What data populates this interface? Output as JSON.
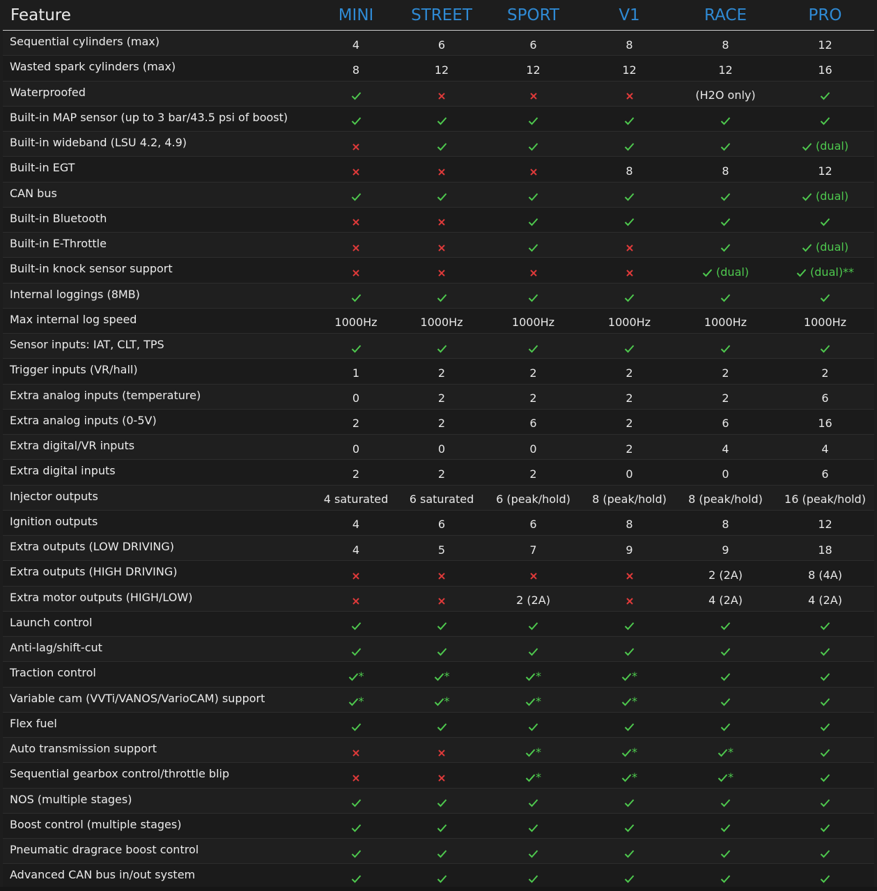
{
  "header": {
    "feature": "Feature",
    "columns": [
      "MINI",
      "STREET",
      "SPORT",
      "V1",
      "RACE",
      "PRO"
    ]
  },
  "colors": {
    "accent": "#2f8ad4",
    "yes": "#4ec94e",
    "no": "#e03a3a",
    "background": "#1d1d1d"
  },
  "icons": {
    "yes": "check-icon",
    "no": "cross-icon"
  },
  "rows": [
    {
      "feature": "Sequential cylinders (max)",
      "values": [
        "4",
        "6",
        "6",
        "8",
        "8",
        "12"
      ]
    },
    {
      "feature": "Wasted spark cylinders (max)",
      "values": [
        "8",
        "12",
        "12",
        "12",
        "12",
        "16"
      ]
    },
    {
      "feature": "Waterproofed",
      "values": [
        "yes",
        "no",
        "no",
        "no",
        "(H2O only)",
        "yes"
      ]
    },
    {
      "feature": "Built-in MAP sensor (up to 3 bar/43.5 psi of boost)",
      "values": [
        "yes",
        "yes",
        "yes",
        "yes",
        "yes",
        "yes"
      ]
    },
    {
      "feature": "Built-in wideband (LSU 4.2, 4.9)",
      "values": [
        "no",
        "yes",
        "yes",
        "yes",
        "yes",
        "yes|(dual)"
      ]
    },
    {
      "feature": "Built-in EGT",
      "values": [
        "no",
        "no",
        "no",
        "8",
        "8",
        "12"
      ]
    },
    {
      "feature": "CAN bus",
      "values": [
        "yes",
        "yes",
        "yes",
        "yes",
        "yes",
        "yes|(dual)"
      ]
    },
    {
      "feature": "Built-in Bluetooth",
      "values": [
        "no",
        "no",
        "yes",
        "yes",
        "yes",
        "yes"
      ]
    },
    {
      "feature": "Built-in E-Throttle",
      "values": [
        "no",
        "no",
        "yes",
        "no",
        "yes",
        "yes|(dual)"
      ]
    },
    {
      "feature": "Built-in knock sensor support",
      "values": [
        "no",
        "no",
        "no",
        "no",
        "yes|(dual)",
        "yes|(dual)**"
      ]
    },
    {
      "feature": "Internal loggings (8MB)",
      "values": [
        "yes",
        "yes",
        "yes",
        "yes",
        "yes",
        "yes"
      ]
    },
    {
      "feature": "Max internal log speed",
      "values": [
        "1000Hz",
        "1000Hz",
        "1000Hz",
        "1000Hz",
        "1000Hz",
        "1000Hz"
      ]
    },
    {
      "feature": "Sensor inputs: IAT, CLT, TPS",
      "values": [
        "yes",
        "yes",
        "yes",
        "yes",
        "yes",
        "yes"
      ]
    },
    {
      "feature": "Trigger inputs (VR/hall)",
      "values": [
        "1",
        "2",
        "2",
        "2",
        "2",
        "2"
      ]
    },
    {
      "feature": "Extra analog inputs (temperature)",
      "values": [
        "0",
        "2",
        "2",
        "2",
        "2",
        "6"
      ]
    },
    {
      "feature": "Extra analog inputs (0-5V)",
      "values": [
        "2",
        "2",
        "6",
        "2",
        "6",
        "16"
      ]
    },
    {
      "feature": "Extra digital/VR inputs",
      "values": [
        "0",
        "0",
        "0",
        "2",
        "4",
        "4"
      ]
    },
    {
      "feature": "Extra digital inputs",
      "values": [
        "2",
        "2",
        "2",
        "0",
        "0",
        "6"
      ]
    },
    {
      "feature": "Injector outputs",
      "values": [
        "4 saturated",
        "6 saturated",
        "6 (peak/hold)",
        "8 (peak/hold)",
        "8 (peak/hold)",
        "16 (peak/hold)"
      ]
    },
    {
      "feature": "Ignition outputs",
      "values": [
        "4",
        "6",
        "6",
        "8",
        "8",
        "12"
      ]
    },
    {
      "feature": "Extra outputs (LOW DRIVING)",
      "values": [
        "4",
        "5",
        "7",
        "9",
        "9",
        "18"
      ]
    },
    {
      "feature": "Extra outputs (HIGH DRIVING)",
      "values": [
        "no",
        "no",
        "no",
        "no",
        "2 (2A)",
        "8 (4A)"
      ]
    },
    {
      "feature": "Extra motor outputs (HIGH/LOW)",
      "values": [
        "no",
        "no",
        "2 (2A)",
        "no",
        "4 (2A)",
        "4 (2A)"
      ]
    },
    {
      "feature": "Launch control",
      "values": [
        "yes",
        "yes",
        "yes",
        "yes",
        "yes",
        "yes"
      ]
    },
    {
      "feature": "Anti-lag/shift-cut",
      "values": [
        "yes",
        "yes",
        "yes",
        "yes",
        "yes",
        "yes"
      ]
    },
    {
      "feature": "Traction control",
      "values": [
        "yes|*",
        "yes|*",
        "yes|*",
        "yes|*",
        "yes",
        "yes"
      ]
    },
    {
      "feature": "Variable cam (VVTi/VANOS/VarioCAM) support",
      "values": [
        "yes|*",
        "yes|*",
        "yes|*",
        "yes|*",
        "yes",
        "yes"
      ]
    },
    {
      "feature": "Flex fuel",
      "values": [
        "yes",
        "yes",
        "yes",
        "yes",
        "yes",
        "yes"
      ]
    },
    {
      "feature": "Auto transmission support",
      "values": [
        "no",
        "no",
        "yes|*",
        "yes|*",
        "yes|*",
        "yes"
      ]
    },
    {
      "feature": "Sequential gearbox control/throttle blip",
      "values": [
        "no",
        "no",
        "yes|*",
        "yes|*",
        "yes|*",
        "yes"
      ]
    },
    {
      "feature": "NOS (multiple stages)",
      "values": [
        "yes",
        "yes",
        "yes",
        "yes",
        "yes",
        "yes"
      ]
    },
    {
      "feature": "Boost control (multiple stages)",
      "values": [
        "yes",
        "yes",
        "yes",
        "yes",
        "yes",
        "yes"
      ]
    },
    {
      "feature": "Pneumatic dragrace boost control",
      "values": [
        "yes",
        "yes",
        "yes",
        "yes",
        "yes",
        "yes"
      ]
    },
    {
      "feature": "Advanced CAN bus in/out system",
      "values": [
        "yes",
        "yes",
        "yes",
        "yes",
        "yes",
        "yes"
      ]
    }
  ]
}
